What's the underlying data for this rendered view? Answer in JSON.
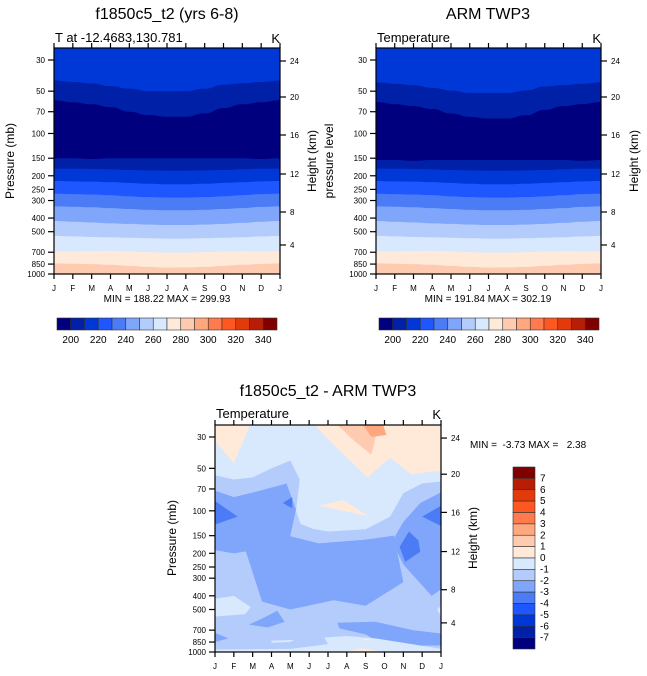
{
  "chart_data": [
    {
      "type": "heatmap",
      "subtype": "filled-contour",
      "title": "f1850c5_t2 (yrs 6-8)",
      "left_string": "T at -12.4683,130.781",
      "right_string": "K",
      "xlabel": "",
      "ylabel": "Pressure (mb)",
      "ylabel_right": "Height (km)",
      "x_ticks": [
        "J",
        "F",
        "M",
        "A",
        "M",
        "J",
        "J",
        "A",
        "S",
        "O",
        "N",
        "D",
        "J"
      ],
      "y_ticks": [
        30,
        50,
        70,
        100,
        150,
        200,
        250,
        300,
        400,
        500,
        700,
        850,
        1000
      ],
      "y_ticks_right": [
        24,
        20,
        16,
        12,
        8,
        4
      ],
      "y_scale": "log",
      "y_reversed": true,
      "stats": "MIN = 188.22 MAX = 299.93",
      "min": 188.22,
      "max": 299.93,
      "units": "K",
      "contour_bands": [
        {
          "band": "<200",
          "pressure_bottom_by_month": [
            150,
            150,
            152,
            150,
            150,
            150,
            150,
            150,
            150,
            150,
            150,
            152,
            150
          ]
        },
        {
          "band": "200-210",
          "pressure_bottom_by_month": [
            58,
            60,
            62,
            65,
            70,
            74,
            76,
            76,
            72,
            66,
            62,
            60,
            58
          ]
        },
        {
          "band": "210-220",
          "pressure_bottom_by_month": [
            42,
            43,
            44,
            46,
            48,
            50,
            50,
            50,
            48,
            45,
            44,
            43,
            42
          ]
        }
      ],
      "description": "Temperature cross-section: coldest (<200 K) band between ~60-150 mb, warming monotonically toward the surface (>290 K near 1000 mb); tropopause dips lower around Jun-Aug."
    },
    {
      "type": "heatmap",
      "subtype": "filled-contour",
      "title": "ARM TWP3",
      "left_string": "Temperature",
      "right_string": "K",
      "xlabel": "",
      "ylabel": "pressure level",
      "ylabel_right": "Height (km)",
      "x_ticks": [
        "J",
        "F",
        "M",
        "A",
        "M",
        "J",
        "J",
        "A",
        "S",
        "O",
        "N",
        "D",
        "J"
      ],
      "y_ticks": [
        30,
        50,
        70,
        100,
        150,
        200,
        250,
        300,
        400,
        500,
        700,
        850,
        1000
      ],
      "y_ticks_right": [
        24,
        20,
        16,
        12,
        8,
        4
      ],
      "y_scale": "log",
      "y_reversed": true,
      "stats": "MIN = 191.84 MAX = 302.19",
      "min": 191.84,
      "max": 302.19,
      "units": "K"
    },
    {
      "type": "heatmap",
      "subtype": "filled-contour-difference",
      "title": "f1850c5_t2 - ARM TWP3",
      "left_string": "Temperature",
      "right_string": "K",
      "xlabel": "",
      "ylabel": "Pressure (mb)",
      "ylabel_right": "Height (km)",
      "x_ticks": [
        "J",
        "F",
        "M",
        "A",
        "M",
        "J",
        "J",
        "A",
        "S",
        "O",
        "N",
        "D",
        "J"
      ],
      "y_ticks": [
        30,
        50,
        70,
        100,
        150,
        200,
        250,
        300,
        400,
        500,
        700,
        850,
        1000
      ],
      "y_ticks_right": [
        24,
        20,
        16,
        12,
        8,
        4
      ],
      "y_scale": "log",
      "y_reversed": true,
      "stats": "MIN =  -3.73 MAX =   2.38",
      "min": -3.73,
      "max": 2.38,
      "units": "K"
    }
  ],
  "colorbar_top": {
    "labels": [
      "200",
      "220",
      "240",
      "260",
      "280",
      "300",
      "320",
      "340"
    ],
    "levels": [
      200,
      210,
      220,
      230,
      240,
      250,
      260,
      270,
      280,
      290,
      300,
      310,
      320,
      330,
      340
    ],
    "colors": [
      "#00007f",
      "#0020a8",
      "#0038d8",
      "#1e56ff",
      "#4b7cf5",
      "#7fa6fb",
      "#b3ccfb",
      "#d8e8fd",
      "#ffeada",
      "#ffcbb0",
      "#ffa77e",
      "#ff7b4d",
      "#ff5722",
      "#e23a0a",
      "#b71e05",
      "#800000"
    ]
  },
  "colorbar_diff": {
    "labels": [
      "7",
      "6",
      "5",
      "4",
      "3",
      "2",
      "1",
      "0",
      "-1",
      "-2",
      "-3",
      "-4",
      "-5",
      "-6",
      "-7"
    ],
    "levels": [
      7,
      6,
      5,
      4,
      3,
      2,
      1,
      0,
      -1,
      -2,
      -3,
      -4,
      -5,
      -6,
      -7
    ],
    "colors_top_to_bottom": [
      "#800000",
      "#b71e05",
      "#e23a0a",
      "#ff5722",
      "#ff7b4d",
      "#ffa77e",
      "#ffcbb0",
      "#ffeada",
      "#d8e8fd",
      "#b3ccfb",
      "#7fa6fb",
      "#4b7cf5",
      "#1e56ff",
      "#0038d8",
      "#0020a8",
      "#00007f"
    ]
  }
}
